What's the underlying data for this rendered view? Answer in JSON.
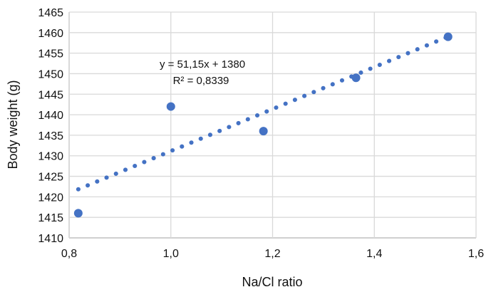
{
  "chart_data": {
    "type": "scatter",
    "title": "",
    "xlabel": "Na/Cl ratio",
    "ylabel": "Body weight (g)",
    "xlim": [
      0.8,
      1.6
    ],
    "ylim": [
      1410,
      1465
    ],
    "x_ticks": [
      0.8,
      1.0,
      1.2,
      1.4,
      1.6
    ],
    "x_tick_labels": [
      "0,8",
      "1,0",
      "1,2",
      "1,4",
      "1,6"
    ],
    "y_ticks": [
      1410,
      1415,
      1420,
      1425,
      1430,
      1435,
      1440,
      1445,
      1450,
      1455,
      1460,
      1465
    ],
    "y_tick_labels": [
      "1410",
      "1415",
      "1420",
      "1425",
      "1430",
      "1435",
      "1440",
      "1445",
      "1450",
      "1455",
      "1460",
      "1465"
    ],
    "grid": true,
    "series": [
      {
        "name": "Body weight",
        "color": "#4472c4",
        "x": [
          0.818,
          1.0,
          1.182,
          1.364,
          1.545
        ],
        "y": [
          1416,
          1442,
          1436,
          1449,
          1459
        ]
      }
    ],
    "trendline": {
      "type": "linear",
      "slope": 51.15,
      "intercept": 1380,
      "style": "dotted",
      "color": "#4472c4",
      "equation_label": "y = 51,15x + 1380",
      "r2_label": "R² = 0,8339"
    }
  }
}
